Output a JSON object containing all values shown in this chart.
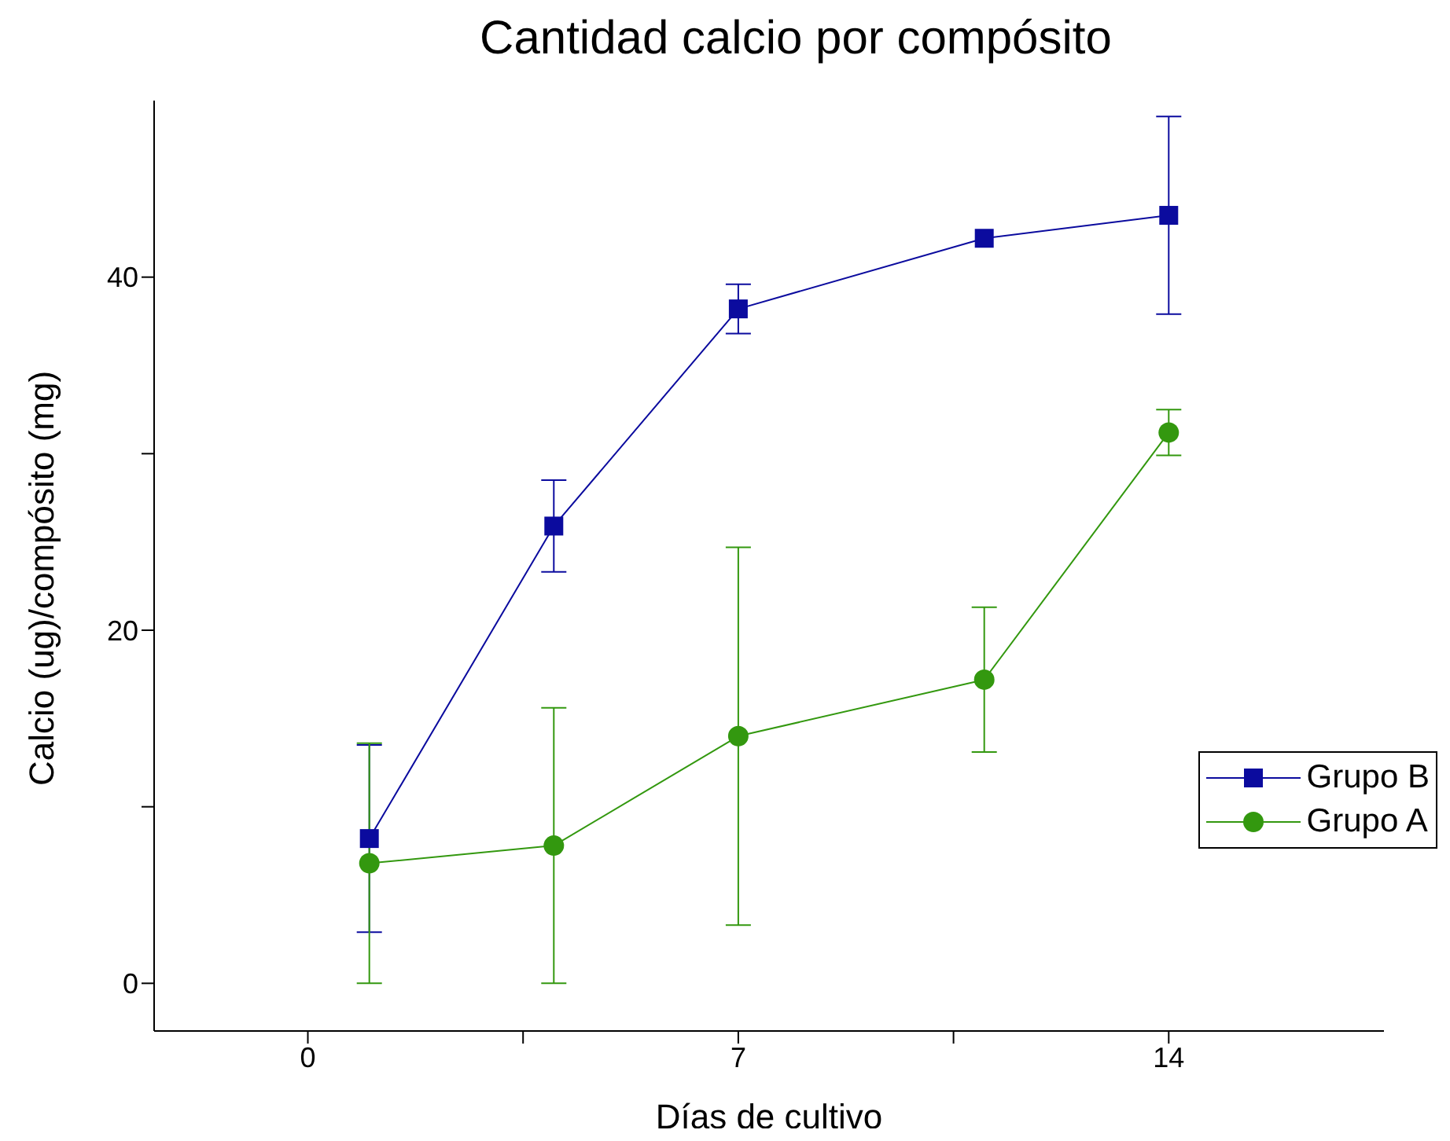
{
  "chart_data": {
    "type": "line",
    "title": "Cantidad calcio por compósito",
    "xlabel": "Días de cultivo",
    "ylabel": "Calcio (ug)/compósito (mg)",
    "x": [
      1,
      4,
      7,
      11,
      14
    ],
    "series": [
      {
        "name": "Grupo B",
        "color": "#0b0b9e",
        "marker": "square",
        "values": [
          8.2,
          25.9,
          38.2,
          42.2,
          43.5
        ],
        "errors": [
          5.3,
          2.6,
          1.4,
          null,
          5.6
        ]
      },
      {
        "name": "Grupo A",
        "color": "#33980f",
        "marker": "circle",
        "values": [
          6.8,
          7.8,
          14.0,
          17.2,
          31.2
        ],
        "errors": [
          6.8,
          7.8,
          10.7,
          4.1,
          1.3
        ]
      }
    ],
    "xlim": [
      -2.5,
      17.5
    ],
    "xticks": [
      0,
      {
        "value": 3.5,
        "label": null
      },
      7,
      {
        "value": 10.5,
        "label": null
      },
      14
    ],
    "ylim": [
      -2.7,
      50
    ],
    "yticks": [
      0,
      {
        "value": 10,
        "label": null
      },
      20,
      {
        "value": 30,
        "label": null
      },
      40
    ],
    "grid": false,
    "legend": "right",
    "line_style": "solid"
  }
}
